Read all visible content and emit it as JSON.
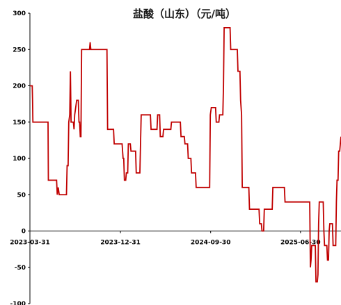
{
  "chart_data": {
    "type": "line",
    "title": "盐酸（山东）（元/吨）",
    "xlabel": "",
    "ylabel": "",
    "ylim": [
      -100,
      300
    ],
    "yticks": [
      300,
      250,
      200,
      150,
      100,
      50,
      0,
      -50,
      -100
    ],
    "xlim": [
      "2023-03-31",
      "2025-10-31"
    ],
    "xtick_labels": [
      "2023-03-31",
      "2023-12-31",
      "2024-09-30",
      "2025-06-30"
    ],
    "grid": false,
    "legend": "none",
    "series": [
      {
        "color": "#c00000",
        "points": [
          [
            "2023-03-31",
            200
          ],
          [
            "2023-04-07",
            200
          ],
          [
            "2023-04-08",
            180
          ],
          [
            "2023-04-09",
            150
          ],
          [
            "2023-05-25",
            150
          ],
          [
            "2023-05-26",
            70
          ],
          [
            "2023-06-20",
            70
          ],
          [
            "2023-06-22",
            50
          ],
          [
            "2023-06-25",
            60
          ],
          [
            "2023-06-28",
            50
          ],
          [
            "2023-07-20",
            50
          ],
          [
            "2023-07-22",
            90
          ],
          [
            "2023-07-25",
            90
          ],
          [
            "2023-07-27",
            150
          ],
          [
            "2023-07-30",
            160
          ],
          [
            "2023-08-01",
            220
          ],
          [
            "2023-08-03",
            150
          ],
          [
            "2023-08-10",
            150
          ],
          [
            "2023-08-12",
            140
          ],
          [
            "2023-08-14",
            160
          ],
          [
            "2023-08-20",
            180
          ],
          [
            "2023-08-25",
            180
          ],
          [
            "2023-08-27",
            150
          ],
          [
            "2023-08-29",
            150
          ],
          [
            "2023-08-31",
            130
          ],
          [
            "2023-09-02",
            130
          ],
          [
            "2023-09-04",
            250
          ],
          [
            "2023-09-28",
            250
          ],
          [
            "2023-09-30",
            260
          ],
          [
            "2023-10-02",
            250
          ],
          [
            "2023-11-20",
            250
          ],
          [
            "2023-11-22",
            140
          ],
          [
            "2023-12-10",
            140
          ],
          [
            "2023-12-12",
            120
          ],
          [
            "2024-01-05",
            120
          ],
          [
            "2024-01-08",
            100
          ],
          [
            "2024-01-10",
            100
          ],
          [
            "2024-01-12",
            70
          ],
          [
            "2024-01-16",
            70
          ],
          [
            "2024-01-18",
            80
          ],
          [
            "2024-01-22",
            80
          ],
          [
            "2024-01-24",
            120
          ],
          [
            "2024-01-30",
            120
          ],
          [
            "2024-02-01",
            110
          ],
          [
            "2024-02-15",
            110
          ],
          [
            "2024-02-17",
            80
          ],
          [
            "2024-02-28",
            80
          ],
          [
            "2024-03-01",
            120
          ],
          [
            "2024-03-03",
            160
          ],
          [
            "2024-03-31",
            160
          ],
          [
            "2024-04-02",
            140
          ],
          [
            "2024-04-20",
            140
          ],
          [
            "2024-04-22",
            160
          ],
          [
            "2024-04-28",
            160
          ],
          [
            "2024-04-30",
            130
          ],
          [
            "2024-05-08",
            130
          ],
          [
            "2024-05-10",
            140
          ],
          [
            "2024-06-01",
            140
          ],
          [
            "2024-06-03",
            150
          ],
          [
            "2024-06-30",
            150
          ],
          [
            "2024-07-02",
            130
          ],
          [
            "2024-07-12",
            130
          ],
          [
            "2024-07-14",
            120
          ],
          [
            "2024-07-22",
            120
          ],
          [
            "2024-07-24",
            100
          ],
          [
            "2024-08-01",
            100
          ],
          [
            "2024-08-03",
            80
          ],
          [
            "2024-08-15",
            80
          ],
          [
            "2024-08-17",
            60
          ],
          [
            "2024-09-27",
            60
          ],
          [
            "2024-09-29",
            160
          ],
          [
            "2024-10-02",
            170
          ],
          [
            "2024-10-15",
            170
          ],
          [
            "2024-10-17",
            150
          ],
          [
            "2024-10-25",
            150
          ],
          [
            "2024-10-27",
            160
          ],
          [
            "2024-11-06",
            160
          ],
          [
            "2024-11-08",
            200
          ],
          [
            "2024-11-10",
            280
          ],
          [
            "2024-11-28",
            280
          ],
          [
            "2024-11-30",
            250
          ],
          [
            "2024-12-20",
            250
          ],
          [
            "2024-12-22",
            220
          ],
          [
            "2024-12-28",
            220
          ],
          [
            "2024-12-30",
            180
          ],
          [
            "2025-01-02",
            160
          ],
          [
            "2025-01-04",
            60
          ],
          [
            "2025-01-24",
            60
          ],
          [
            "2025-01-26",
            30
          ],
          [
            "2025-02-24",
            30
          ],
          [
            "2025-02-26",
            10
          ],
          [
            "2025-03-03",
            10
          ],
          [
            "2025-03-05",
            0
          ],
          [
            "2025-03-10",
            0
          ],
          [
            "2025-03-12",
            30
          ],
          [
            "2025-04-05",
            30
          ],
          [
            "2025-04-07",
            60
          ],
          [
            "2025-05-12",
            60
          ],
          [
            "2025-05-14",
            40
          ],
          [
            "2025-07-28",
            40
          ],
          [
            "2025-07-30",
            -50
          ],
          [
            "2025-08-01",
            -40
          ],
          [
            "2025-08-03",
            -20
          ],
          [
            "2025-08-14",
            -20
          ],
          [
            "2025-08-16",
            -70
          ],
          [
            "2025-08-20",
            -70
          ],
          [
            "2025-08-22",
            -60
          ],
          [
            "2025-08-24",
            10
          ],
          [
            "2025-08-26",
            40
          ],
          [
            "2025-09-07",
            40
          ],
          [
            "2025-09-09",
            0
          ],
          [
            "2025-09-11",
            -20
          ],
          [
            "2025-09-18",
            -20
          ],
          [
            "2025-09-20",
            -40
          ],
          [
            "2025-09-23",
            -40
          ],
          [
            "2025-09-25",
            0
          ],
          [
            "2025-09-27",
            10
          ],
          [
            "2025-10-05",
            10
          ],
          [
            "2025-10-07",
            -20
          ],
          [
            "2025-10-15",
            -20
          ],
          [
            "2025-10-17",
            40
          ],
          [
            "2025-10-19",
            70
          ],
          [
            "2025-10-22",
            70
          ],
          [
            "2025-10-24",
            110
          ],
          [
            "2025-10-27",
            110
          ],
          [
            "2025-10-29",
            120
          ],
          [
            "2025-10-31",
            130
          ]
        ]
      }
    ]
  }
}
